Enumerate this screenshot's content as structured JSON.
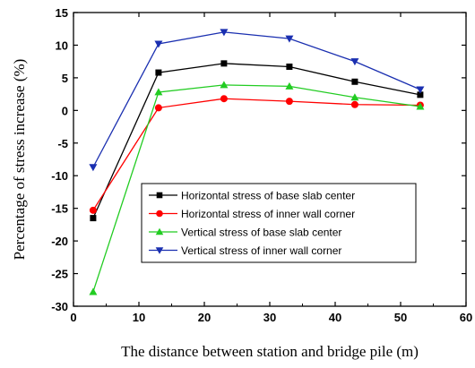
{
  "chart_data": {
    "type": "line",
    "title": "",
    "xlabel": "The distance between station and bridge pile (m)",
    "ylabel": "Percentage of stress increase (%)",
    "xlim": [
      0,
      60
    ],
    "ylim": [
      -30,
      15
    ],
    "xticks": [
      0,
      10,
      20,
      30,
      40,
      50,
      60
    ],
    "yticks": [
      15,
      10,
      5,
      0,
      -5,
      -10,
      -15,
      -20,
      -25,
      -30
    ],
    "x": [
      3,
      13,
      23,
      33,
      43,
      53
    ],
    "grid": false,
    "legend_position": "lower-right",
    "series": [
      {
        "name": "Horizontal stress of base slab center",
        "values": [
          -16.5,
          5.8,
          7.2,
          6.7,
          4.4,
          2.4
        ],
        "color": "#000000",
        "marker": "square"
      },
      {
        "name": "Horizontal stress of inner wall corner",
        "values": [
          -15.3,
          0.4,
          1.8,
          1.4,
          0.9,
          0.8
        ],
        "color": "#ff0000",
        "marker": "circle"
      },
      {
        "name": "Vertical stress of base slab center",
        "values": [
          -27.8,
          2.8,
          3.9,
          3.7,
          2.0,
          0.6
        ],
        "color": "#22cc22",
        "marker": "triangle-up"
      },
      {
        "name": "Vertical stress of inner wall corner",
        "values": [
          -8.7,
          10.2,
          12.0,
          11.0,
          7.5,
          3.2
        ],
        "color": "#1a2fb0",
        "marker": "triangle-down"
      }
    ]
  }
}
